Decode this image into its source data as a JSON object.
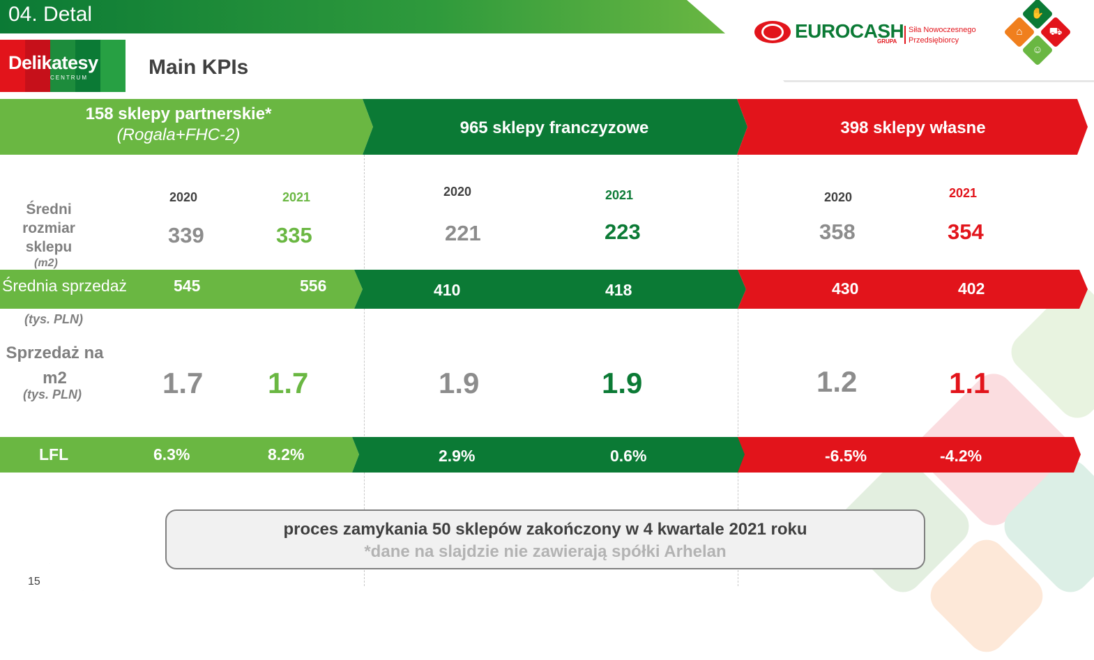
{
  "header": {
    "section_title": "04. Detal",
    "subtitle": "Main KPIs"
  },
  "logos": {
    "delikatesy_text": "Delikatesy",
    "delikatesy_sub": "CENTRUM",
    "eurocash_name": "EUROCASH",
    "eurocash_grupa": "GRUPA",
    "eurocash_tagline_1": "Siła Nowoczesnego",
    "eurocash_tagline_2": "Przedsiębiorcy"
  },
  "segments": {
    "partner": {
      "title": "158 sklepy partnerskie*",
      "subtitle": "(Rogala+FHC-2)"
    },
    "franchise": {
      "title": "965 sklepy franczyzowe"
    },
    "own": {
      "title": "398 sklepy własne"
    }
  },
  "years": {
    "partner": [
      "2020",
      "2021"
    ],
    "franchise": [
      "2020",
      "2021"
    ],
    "own": [
      "2020",
      "2021"
    ]
  },
  "rows": {
    "size": {
      "label_1": "Średni",
      "label_2": "rozmiar",
      "label_3": "sklepu",
      "unit": "(m2)",
      "partner": [
        "339",
        "335"
      ],
      "franchise": [
        "221",
        "223"
      ],
      "own": [
        "358",
        "354"
      ]
    },
    "sales": {
      "label": "Średnia sprzedaż",
      "unit": "(tys. PLN)",
      "partner": [
        "545",
        "556"
      ],
      "franchise": [
        "410",
        "418"
      ],
      "own": [
        "430",
        "402"
      ]
    },
    "sales_m2": {
      "label_1": "Sprzedaż na",
      "label_2": "m2",
      "unit": "(tys. PLN)",
      "partner": [
        "1.7",
        "1.7"
      ],
      "franchise": [
        "1.9",
        "1.9"
      ],
      "own": [
        "1.2",
        "1.1"
      ]
    },
    "lfl": {
      "label": "LFL",
      "partner": [
        "6.3%",
        "8.2%"
      ],
      "franchise": [
        "2.9%",
        "0.6%"
      ],
      "own": [
        "-6.5%",
        "-4.2%"
      ]
    }
  },
  "notes": {
    "line1": "proces zamykania 50 sklepów zakończony w 4 kwartale 2021 roku",
    "line2": "*dane na slajdzie nie zawierają spółki Arhelan"
  },
  "page_number": "15",
  "colors": {
    "light_green": "#6ab742",
    "dark_green": "#0b7a35",
    "red": "#e2141b",
    "grey_text": "#7f7f7f"
  }
}
